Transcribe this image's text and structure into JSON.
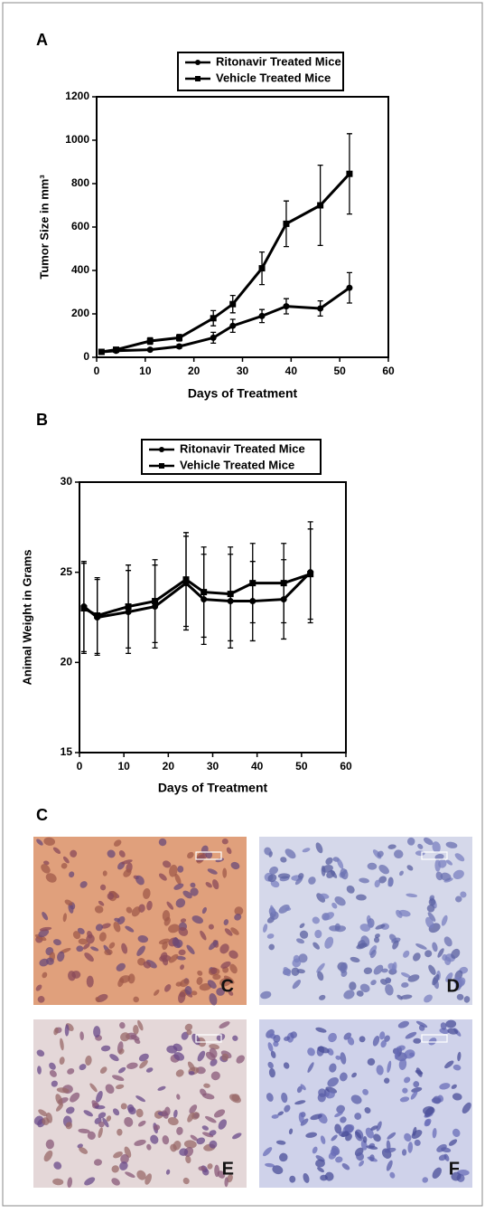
{
  "chart_data": [
    {
      "type": "line",
      "panel_label": "A",
      "x_label": "Days of Treatment",
      "y_label": "Tumor Size in mm³",
      "x": [
        1,
        4,
        11,
        17,
        24,
        28,
        34,
        39,
        46,
        52
      ],
      "series": [
        {
          "name": "Ritonavir Treated Mice",
          "color": "#000000",
          "marker": "circle",
          "values": [
            25,
            30,
            35,
            50,
            90,
            145,
            190,
            235,
            225,
            320
          ],
          "errors": [
            5,
            5,
            5,
            8,
            25,
            30,
            30,
            35,
            35,
            70
          ]
        },
        {
          "name": "Vehicle Treated Mice",
          "color": "#000000",
          "marker": "square",
          "values": [
            25,
            35,
            75,
            90,
            180,
            245,
            410,
            615,
            700,
            845
          ],
          "errors": [
            5,
            5,
            15,
            15,
            35,
            40,
            75,
            105,
            185,
            185
          ]
        }
      ],
      "xlim": [
        0,
        60
      ],
      "xticks": [
        0,
        10,
        20,
        30,
        40,
        50,
        60
      ],
      "ylim": [
        0,
        1200
      ],
      "yticks": [
        0,
        200,
        400,
        600,
        800,
        1000,
        1200
      ]
    },
    {
      "type": "line",
      "panel_label": "B",
      "x_label": "Days of Treatment",
      "y_label": "Animal Weight in Grams",
      "x": [
        1,
        4,
        11,
        17,
        24,
        28,
        34,
        39,
        46,
        52
      ],
      "series": [
        {
          "name": "Ritonavir Treated Mice",
          "color": "#000000",
          "marker": "circle",
          "values": [
            23.1,
            22.5,
            22.8,
            23.1,
            24.4,
            23.5,
            23.4,
            23.4,
            23.5,
            25.0
          ],
          "errors": [
            2.5,
            2.1,
            2.3,
            2.3,
            2.6,
            2.5,
            2.6,
            2.2,
            2.2,
            2.8
          ]
        },
        {
          "name": "Vehicle Treated Mice",
          "color": "#000000",
          "marker": "square",
          "values": [
            23.0,
            22.6,
            23.1,
            23.4,
            24.6,
            23.9,
            23.8,
            24.4,
            24.4,
            24.9
          ],
          "errors": [
            2.5,
            2.1,
            2.3,
            2.3,
            2.6,
            2.5,
            2.6,
            2.2,
            2.2,
            2.5
          ]
        }
      ],
      "xlim": [
        0,
        60
      ],
      "xticks": [
        0,
        10,
        20,
        30,
        40,
        50,
        60
      ],
      "ylim": [
        15,
        30
      ],
      "yticks": [
        15,
        20,
        25,
        30
      ]
    }
  ],
  "micrographs": {
    "panel_label": "C",
    "images": [
      "C",
      "D",
      "E",
      "F"
    ]
  }
}
